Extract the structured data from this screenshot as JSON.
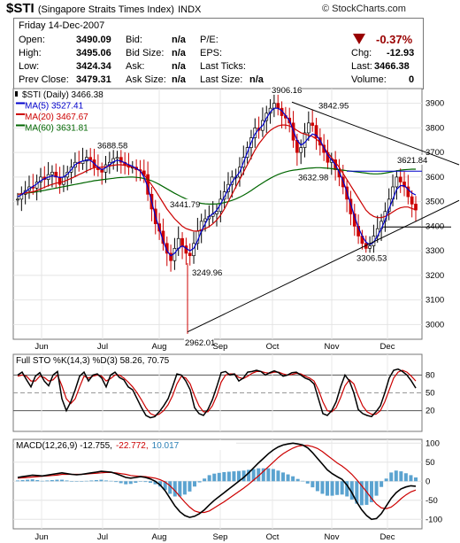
{
  "header": {
    "symbol": "$STI",
    "name": "(Singapore Straits Times Index)",
    "exchange": "INDX",
    "brand": "© StockCharts.com"
  },
  "quote": {
    "date": "Friday  14-Dec-2007",
    "open_label": "Open:",
    "open": "3490.09",
    "high_label": "High:",
    "high": "3495.06",
    "low_label": "Low:",
    "low": "3424.34",
    "prev_label": "Prev Close:",
    "prev": "3479.31",
    "bid_label": "Bid:",
    "bid": "n/a",
    "bidsize_label": "Bid Size:",
    "bidsize": "n/a",
    "ask_label": "Ask:",
    "ask": "n/a",
    "asksize_label": "Ask Size:",
    "asksize": "n/a",
    "pe_label": "P/E:",
    "eps_label": "EPS:",
    "ticks_label": "Last Ticks:",
    "lastsize_label": "Last Size:",
    "lastsize": "n/a",
    "pct_change": "-0.37%",
    "chg_label": "Chg:",
    "chg": "-12.93",
    "last_label": "Last:",
    "last": "3466.38",
    "vol_label": "Volume:",
    "vol": "0",
    "colors": {
      "down": "#990000"
    }
  },
  "chart_data": [
    {
      "type": "candlestick",
      "legend": [
        {
          "text": "$STI (Daily) 3466.38",
          "color": "#000000"
        },
        {
          "text": "MA(5) 3527.41",
          "color": "#0000cc"
        },
        {
          "text": "MA(20) 3467.67",
          "color": "#cc0000"
        },
        {
          "text": "MA(60) 3631.81",
          "color": "#006600"
        }
      ],
      "ylim": [
        2940,
        3960
      ],
      "yticks": [
        3000,
        3100,
        3200,
        3300,
        3400,
        3500,
        3600,
        3700,
        3800,
        3900
      ],
      "xticks": [
        "Jun",
        "Jul",
        "Aug",
        "Sep",
        "Oct",
        "Nov",
        "Dec"
      ],
      "annotations": [
        {
          "text": "3688.58",
          "value": 3688.58
        },
        {
          "text": "3441.79",
          "value": 3441.79
        },
        {
          "text": "3249.96",
          "value": 3249.96
        },
        {
          "text": "2962.01",
          "value": 2962.01
        },
        {
          "text": "3906.16",
          "value": 3906.16
        },
        {
          "text": "3842.95",
          "value": 3842.95
        },
        {
          "text": "3632.98",
          "value": 3632.98
        },
        {
          "text": "3306.53",
          "value": 3306.53
        },
        {
          "text": "3621.84",
          "value": 3621.84
        }
      ],
      "close_series": [
        3510,
        3530,
        3545,
        3560,
        3555,
        3580,
        3600,
        3590,
        3610,
        3620,
        3600,
        3570,
        3600,
        3620,
        3640,
        3660,
        3655,
        3665,
        3680,
        3670,
        3640,
        3630,
        3620,
        3650,
        3660,
        3675,
        3680,
        3660,
        3650,
        3640,
        3640,
        3630,
        3625,
        3610,
        3530,
        3470,
        3410,
        3380,
        3330,
        3290,
        3260,
        3310,
        3350,
        3320,
        3290,
        3280,
        3330,
        3380,
        3420,
        3430,
        3440,
        3450,
        3460,
        3510,
        3540,
        3570,
        3600,
        3600,
        3640,
        3680,
        3720,
        3760,
        3800,
        3790,
        3830,
        3860,
        3880,
        3900,
        3880,
        3850,
        3840,
        3820,
        3750,
        3700,
        3720,
        3780,
        3820,
        3810,
        3760,
        3730,
        3700,
        3660,
        3670,
        3630,
        3600,
        3560,
        3510,
        3450,
        3400,
        3360,
        3330,
        3310,
        3320,
        3360,
        3390,
        3420,
        3460,
        3510,
        3560,
        3600,
        3580,
        3560,
        3520,
        3490,
        3466
      ],
      "ma5": [
        3520,
        3528,
        3540,
        3552,
        3562,
        3572,
        3585,
        3593,
        3600,
        3605,
        3602,
        3598,
        3600,
        3612,
        3630,
        3650,
        3660,
        3665,
        3670,
        3668,
        3655,
        3640,
        3630,
        3638,
        3650,
        3662,
        3668,
        3665,
        3658,
        3650,
        3644,
        3635,
        3625,
        3600,
        3560,
        3500,
        3440,
        3390,
        3340,
        3300,
        3280,
        3290,
        3310,
        3320,
        3310,
        3300,
        3310,
        3340,
        3380,
        3410,
        3440,
        3450,
        3465,
        3490,
        3520,
        3550,
        3580,
        3600,
        3620,
        3660,
        3700,
        3740,
        3775,
        3795,
        3810,
        3840,
        3865,
        3880,
        3880,
        3870,
        3850,
        3830,
        3790,
        3750,
        3730,
        3740,
        3760,
        3775,
        3770,
        3750,
        3720,
        3690,
        3670,
        3650,
        3620,
        3585,
        3540,
        3490,
        3440,
        3395,
        3360,
        3335,
        3325,
        3335,
        3360,
        3390,
        3425,
        3470,
        3510,
        3550,
        3565,
        3565,
        3550,
        3535,
        3527
      ],
      "ma20": [
        3530,
        3532,
        3535,
        3538,
        3540,
        3545,
        3552,
        3558,
        3565,
        3570,
        3575,
        3578,
        3582,
        3588,
        3595,
        3602,
        3610,
        3617,
        3625,
        3632,
        3638,
        3640,
        3640,
        3642,
        3645,
        3648,
        3650,
        3650,
        3648,
        3645,
        3640,
        3633,
        3625,
        3610,
        3590,
        3568,
        3545,
        3520,
        3495,
        3470,
        3450,
        3430,
        3415,
        3400,
        3390,
        3385,
        3380,
        3380,
        3385,
        3390,
        3398,
        3410,
        3425,
        3445,
        3470,
        3500,
        3530,
        3560,
        3590,
        3620,
        3650,
        3680,
        3710,
        3735,
        3755,
        3775,
        3790,
        3800,
        3808,
        3812,
        3812,
        3808,
        3800,
        3790,
        3780,
        3775,
        3770,
        3765,
        3755,
        3740,
        3720,
        3700,
        3680,
        3660,
        3640,
        3615,
        3590,
        3565,
        3540,
        3515,
        3490,
        3465,
        3450,
        3440,
        3435,
        3435,
        3440,
        3448,
        3458,
        3468,
        3475,
        3478,
        3478,
        3472,
        3467
      ],
      "ma60": [
        3530,
        3532,
        3534,
        3536,
        3538,
        3540,
        3543,
        3546,
        3549,
        3552,
        3555,
        3558,
        3561,
        3564,
        3567,
        3570,
        3573,
        3576,
        3579,
        3582,
        3585,
        3587,
        3589,
        3591,
        3593,
        3595,
        3597,
        3598,
        3599,
        3600,
        3600,
        3599,
        3597,
        3594,
        3590,
        3585,
        3578,
        3570,
        3561,
        3552,
        3543,
        3534,
        3526,
        3518,
        3511,
        3505,
        3500,
        3496,
        3493,
        3491,
        3490,
        3490,
        3491,
        3493,
        3496,
        3500,
        3505,
        3511,
        3518,
        3526,
        3535,
        3545,
        3556,
        3566,
        3576,
        3586,
        3595,
        3603,
        3610,
        3616,
        3621,
        3625,
        3628,
        3630,
        3632,
        3634,
        3636,
        3637,
        3638,
        3638,
        3637,
        3636,
        3634,
        3632,
        3630,
        3628,
        3626,
        3624,
        3622,
        3620,
        3618,
        3616,
        3614,
        3613,
        3613,
        3614,
        3616,
        3619,
        3622,
        3625,
        3628,
        3630,
        3631,
        3632,
        3632
      ]
    },
    {
      "type": "line",
      "legend": "Full STO %K(14,3) %D(3) 58.26, 70.75",
      "ylim": [
        0,
        100
      ],
      "yticks": [
        20,
        50,
        80
      ],
      "series": [
        {
          "name": "%K",
          "color": "#000000",
          "values": [
            80,
            85,
            72,
            60,
            78,
            84,
            70,
            62,
            80,
            86,
            40,
            20,
            35,
            55,
            78,
            85,
            70,
            80,
            82,
            75,
            60,
            80,
            85,
            76,
            72,
            60,
            55,
            40,
            25,
            12,
            8,
            10,
            18,
            28,
            40,
            60,
            82,
            80,
            70,
            55,
            25,
            15,
            12,
            22,
            38,
            60,
            84,
            86,
            80,
            82,
            70,
            75,
            85,
            86,
            88,
            86,
            80,
            84,
            87,
            84,
            78,
            80,
            84,
            85,
            80,
            75,
            72,
            65,
            40,
            15,
            12,
            20,
            35,
            60,
            80,
            70,
            50,
            22,
            15,
            12,
            10,
            18,
            28,
            50,
            75,
            88,
            90,
            86,
            80,
            70,
            58
          ]
        },
        {
          "name": "%D",
          "color": "#cc0000",
          "values": [
            78,
            80,
            78,
            70,
            70,
            78,
            76,
            70,
            72,
            80,
            62,
            40,
            32,
            40,
            60,
            78,
            75,
            78,
            80,
            78,
            70,
            74,
            80,
            80,
            75,
            68,
            60,
            50,
            38,
            25,
            15,
            12,
            14,
            20,
            30,
            45,
            65,
            78,
            75,
            65,
            45,
            28,
            18,
            18,
            28,
            45,
            68,
            80,
            82,
            82,
            76,
            74,
            78,
            83,
            86,
            86,
            84,
            83,
            85,
            85,
            82,
            80,
            81,
            83,
            82,
            78,
            75,
            70,
            55,
            35,
            20,
            18,
            25,
            42,
            62,
            72,
            65,
            45,
            28,
            18,
            14,
            14,
            20,
            35,
            55,
            75,
            85,
            88,
            85,
            78,
            70
          ]
        }
      ]
    },
    {
      "type": "line",
      "legend": [
        {
          "text": "MACD(12,26,9) -12.755,",
          "color": "#000000"
        },
        {
          "text": "-22.772,",
          "color": "#cc0000"
        },
        {
          "text": "10.017",
          "color": "#2a7fb5"
        }
      ],
      "ylim": [
        -125,
        110
      ],
      "yticks": [
        100,
        50,
        0,
        -50,
        -100
      ],
      "series": [
        {
          "name": "MACD",
          "color": "#000000",
          "values": [
            10,
            12,
            14,
            16,
            15,
            14,
            16,
            18,
            20,
            22,
            20,
            18,
            17,
            18,
            20,
            22,
            24,
            26,
            25,
            24,
            20,
            15,
            10,
            8,
            10,
            12,
            10,
            6,
            0,
            -10,
            -25,
            -45,
            -65,
            -80,
            -90,
            -95,
            -92,
            -85,
            -75,
            -62,
            -50,
            -40,
            -30,
            -20,
            -10,
            0,
            10,
            22,
            35,
            48,
            60,
            72,
            82,
            90,
            95,
            98,
            100,
            98,
            95,
            88,
            75,
            60,
            45,
            30,
            20,
            12,
            5,
            -10,
            -30,
            -55,
            -75,
            -90,
            -100,
            -98,
            -85,
            -65,
            -45,
            -30,
            -20,
            -15,
            -12,
            -13
          ]
        },
        {
          "name": "Signal",
          "color": "#cc0000",
          "values": [
            8,
            9,
            10,
            11,
            12,
            13,
            14,
            15,
            16,
            18,
            18,
            18,
            18,
            18,
            19,
            20,
            21,
            22,
            23,
            23,
            22,
            20,
            18,
            15,
            14,
            13,
            12,
            10,
            8,
            4,
            -2,
            -12,
            -25,
            -40,
            -55,
            -68,
            -78,
            -82,
            -82,
            -78,
            -70,
            -62,
            -54,
            -45,
            -36,
            -27,
            -18,
            -8,
            3,
            14,
            26,
            38,
            50,
            62,
            72,
            80,
            87,
            92,
            94,
            94,
            91,
            86,
            78,
            68,
            58,
            48,
            40,
            30,
            18,
            4,
            -12,
            -28,
            -45,
            -60,
            -70,
            -72,
            -68,
            -58,
            -46,
            -36,
            -28,
            -23
          ]
        },
        {
          "name": "Histogram",
          "color": "#5ba3d0",
          "values": [
            2,
            3,
            4,
            5,
            3,
            1,
            2,
            3,
            4,
            4,
            2,
            0,
            -1,
            0,
            1,
            2,
            3,
            4,
            2,
            1,
            -2,
            -5,
            -8,
            -7,
            -4,
            -1,
            -2,
            -4,
            -8,
            -14,
            -23,
            -33,
            -40,
            -40,
            -35,
            -27,
            -14,
            -3,
            7,
            16,
            20,
            22,
            24,
            25,
            26,
            27,
            28,
            30,
            32,
            34,
            34,
            34,
            32,
            28,
            23,
            18,
            13,
            6,
            1,
            -6,
            -16,
            -26,
            -33,
            -38,
            -38,
            -36,
            -35,
            -40,
            -48,
            -59,
            -63,
            -62,
            -55,
            -38,
            -15,
            7,
            23,
            28,
            26,
            21,
            16,
            10
          ]
        }
      ],
      "xticks": [
        "Jun",
        "Jul",
        "Aug",
        "Sep",
        "Oct",
        "Nov",
        "Dec"
      ]
    }
  ]
}
